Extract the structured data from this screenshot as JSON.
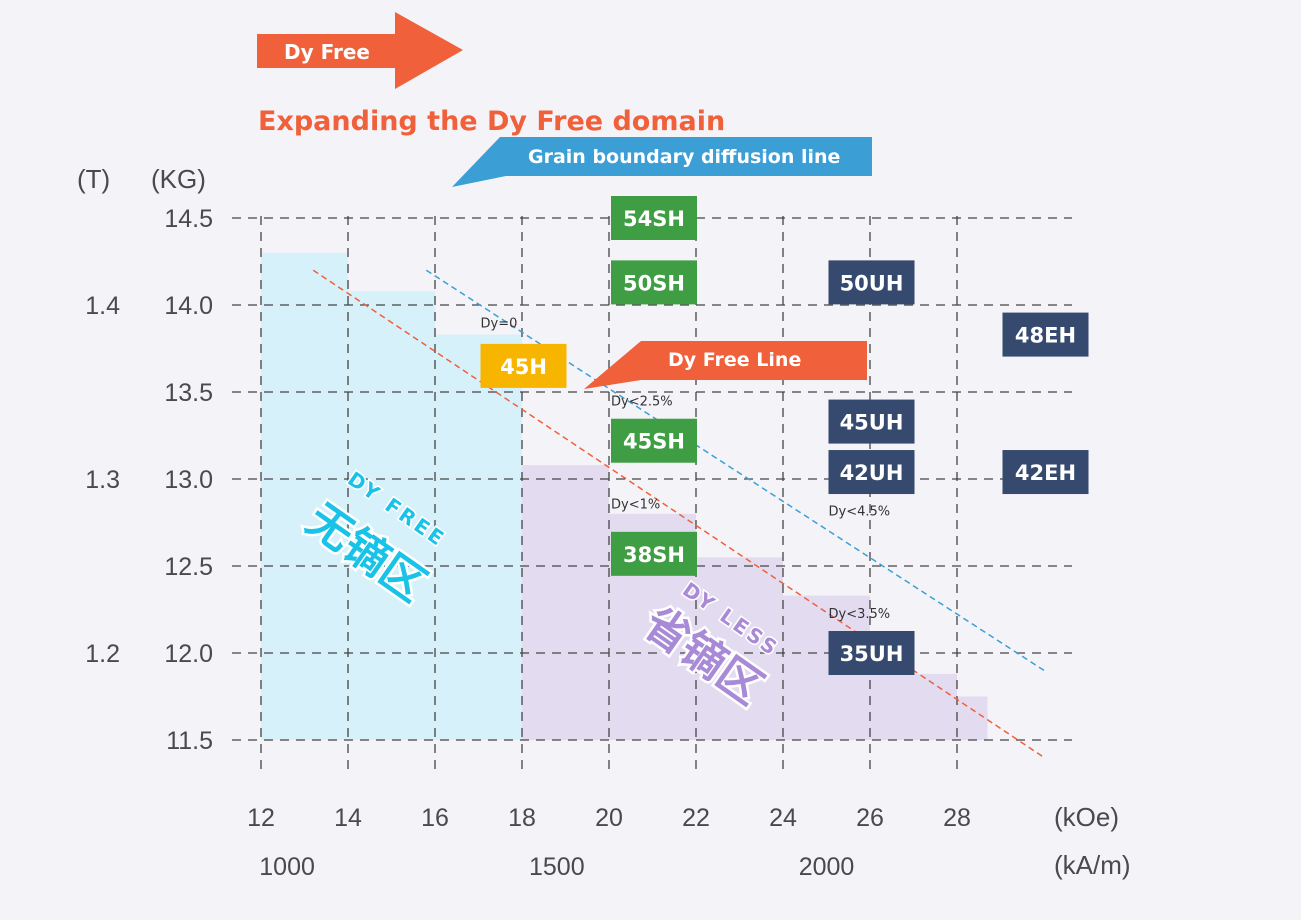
{
  "header": {
    "arrow_label": "Dy Free",
    "subtitle": "Expanding the Dy Free domain"
  },
  "colors": {
    "accent_orange": "#f0603a",
    "blue_arrow": "#3b9fd6",
    "green_grade": "#3f9d44",
    "navy_grade": "#354a6e",
    "yellow_grade": "#f7b500",
    "dy_free_fill": "#d7f1fa",
    "dy_less_fill": "#e3dcf0",
    "dy_free_text": "#19c3e8",
    "dy_less_text": "#a88ad6"
  },
  "chart_data": {
    "type": "area",
    "x_axis": {
      "label": "(kOe)",
      "ticks": [
        12,
        14,
        16,
        18,
        20,
        22,
        24,
        26,
        28
      ],
      "secondary_label": "(kA/m)",
      "secondary_ticks": [
        {
          "value": "1000",
          "at": 12.6
        },
        {
          "value": "1500",
          "at": 18.8
        },
        {
          "value": "2000",
          "at": 25.0
        }
      ],
      "range": [
        11.5,
        30
      ]
    },
    "y_axis": {
      "label": "(KG)",
      "ticks": [
        "14.5",
        "14.0",
        "13.5",
        "13.0",
        "12.5",
        "12.0",
        "11.5"
      ],
      "secondary_label": "(T)",
      "secondary_ticks": [
        {
          "value": "1.4",
          "at": 14.0
        },
        {
          "value": "1.3",
          "at": 13.0
        },
        {
          "value": "1.2",
          "at": 12.0
        }
      ],
      "range": [
        11.3,
        14.7
      ]
    },
    "regions": [
      {
        "name": "dy_free",
        "label_en": "DY FREE",
        "label_cn": "无镝区",
        "steps": [
          [
            12,
            14,
            14.3
          ],
          [
            14,
            16,
            14.08
          ],
          [
            16,
            18,
            13.83
          ]
        ]
      },
      {
        "name": "dy_less",
        "label_en": "DY LESS",
        "label_cn": "省镝区",
        "steps": [
          [
            18,
            20,
            13.08
          ],
          [
            20,
            22,
            12.8
          ],
          [
            22,
            24,
            12.55
          ],
          [
            24,
            26,
            12.33
          ],
          [
            26,
            28,
            11.88
          ],
          [
            28,
            28.7,
            11.75
          ]
        ]
      }
    ],
    "lines": [
      {
        "name": "Dy Free Line",
        "from": [
          13.2,
          14.2
        ],
        "to": [
          30,
          11.4
        ]
      },
      {
        "name": "Grain boundary diffusion line",
        "from": [
          15.8,
          14.2
        ],
        "to": [
          30,
          11.9
        ]
      }
    ],
    "grades": [
      {
        "label": "54SH",
        "x": 20,
        "y": 14.5,
        "group": "green"
      },
      {
        "label": "50SH",
        "x": 20,
        "y": 14.13,
        "group": "green"
      },
      {
        "label": "45H",
        "x": 17,
        "y": 13.65,
        "group": "yellow"
      },
      {
        "label": "45SH",
        "x": 20,
        "y": 13.22,
        "group": "green"
      },
      {
        "label": "38SH",
        "x": 20,
        "y": 12.57,
        "group": "green"
      },
      {
        "label": "50UH",
        "x": 25,
        "y": 14.13,
        "group": "navy"
      },
      {
        "label": "45UH",
        "x": 25,
        "y": 13.33,
        "group": "navy"
      },
      {
        "label": "42UH",
        "x": 25,
        "y": 13.04,
        "group": "navy"
      },
      {
        "label": "35UH",
        "x": 25,
        "y": 12.0,
        "group": "navy"
      },
      {
        "label": "48EH",
        "x": 29,
        "y": 13.83,
        "group": "navy"
      },
      {
        "label": "42EH",
        "x": 29,
        "y": 13.04,
        "group": "navy"
      }
    ],
    "annotations": [
      {
        "text": "Dy=0",
        "x": 17,
        "y": 13.9
      },
      {
        "text": "Dy<2.5%",
        "x": 20,
        "y": 13.45
      },
      {
        "text": "Dy<1%",
        "x": 20,
        "y": 12.86
      },
      {
        "text": "Dy<4.5%",
        "x": 25,
        "y": 12.82
      },
      {
        "text": "Dy<3.5%",
        "x": 25,
        "y": 12.23
      }
    ]
  }
}
